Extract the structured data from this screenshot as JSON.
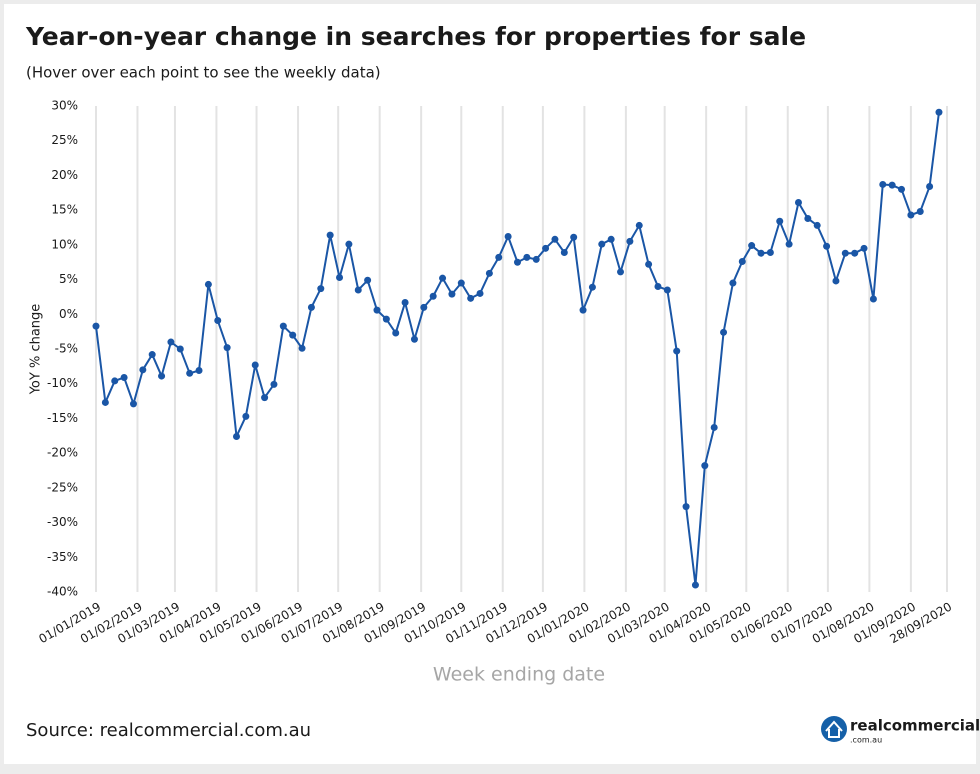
{
  "chart_data": {
    "type": "line",
    "title": "Year-on-year change in searches for properties for sale",
    "subtitle": "(Hover over each point to see the weekly data)",
    "y_label": "YoY % change",
    "x_label": "Week ending date",
    "x": [
      "2019-01-01",
      "2019-01-08",
      "2019-01-15",
      "2019-01-22",
      "2019-01-29",
      "2019-02-05",
      "2019-02-12",
      "2019-02-19",
      "2019-02-26",
      "2019-03-05",
      "2019-03-12",
      "2019-03-19",
      "2019-03-26",
      "2019-04-02",
      "2019-04-09",
      "2019-04-16",
      "2019-04-23",
      "2019-04-30",
      "2019-05-07",
      "2019-05-14",
      "2019-05-21",
      "2019-05-28",
      "2019-06-04",
      "2019-06-11",
      "2019-06-18",
      "2019-06-25",
      "2019-07-02",
      "2019-07-09",
      "2019-07-16",
      "2019-07-23",
      "2019-07-30",
      "2019-08-06",
      "2019-08-13",
      "2019-08-20",
      "2019-08-27",
      "2019-09-03",
      "2019-09-10",
      "2019-09-17",
      "2019-09-24",
      "2019-10-01",
      "2019-10-08",
      "2019-10-15",
      "2019-10-22",
      "2019-10-29",
      "2019-11-05",
      "2019-11-12",
      "2019-11-19",
      "2019-11-26",
      "2019-12-03",
      "2019-12-10",
      "2019-12-17",
      "2019-12-24",
      "2019-12-31",
      "2020-01-07",
      "2020-01-14",
      "2020-01-21",
      "2020-01-28",
      "2020-02-04",
      "2020-02-11",
      "2020-02-18",
      "2020-02-25",
      "2020-03-03",
      "2020-03-10",
      "2020-03-17",
      "2020-03-24",
      "2020-03-31",
      "2020-04-07",
      "2020-04-14",
      "2020-04-21",
      "2020-04-28",
      "2020-05-05",
      "2020-05-12",
      "2020-05-19",
      "2020-05-26",
      "2020-06-02",
      "2020-06-09",
      "2020-06-16",
      "2020-06-23",
      "2020-06-30",
      "2020-07-07",
      "2020-07-14",
      "2020-07-21",
      "2020-07-28",
      "2020-08-04",
      "2020-08-11",
      "2020-08-18",
      "2020-08-25",
      "2020-09-01",
      "2020-09-08",
      "2020-09-15",
      "2020-09-22"
    ],
    "series": [
      {
        "name": "YoY % change",
        "color": "#1a56a6",
        "values": [
          -1.7,
          -12.7,
          -9.6,
          -9.1,
          -12.9,
          -8.0,
          -5.8,
          -8.9,
          -4.0,
          -5.0,
          -8.5,
          -8.1,
          4.3,
          -0.9,
          -4.8,
          -17.6,
          -14.7,
          -7.3,
          -12.0,
          -10.1,
          -1.7,
          -3.0,
          -4.9,
          1.0,
          3.7,
          11.4,
          5.3,
          10.1,
          3.5,
          4.9,
          0.6,
          -0.7,
          -2.7,
          1.7,
          -3.6,
          1.0,
          2.6,
          5.2,
          2.9,
          4.5,
          2.3,
          3.0,
          5.9,
          8.2,
          11.2,
          7.5,
          8.2,
          7.9,
          9.5,
          10.8,
          8.9,
          11.1,
          0.6,
          3.9,
          10.1,
          10.8,
          6.1,
          10.5,
          12.8,
          7.2,
          4.0,
          3.5,
          -5.3,
          -27.7,
          -39.0,
          -21.8,
          -16.3,
          -2.6,
          4.5,
          7.6,
          9.9,
          8.8,
          8.9,
          13.4,
          10.1,
          16.1,
          13.8,
          12.8,
          9.8,
          4.8,
          8.8,
          8.8,
          9.5,
          2.2,
          18.7,
          18.6,
          18.0,
          14.3,
          14.8,
          18.4,
          29.1
        ]
      }
    ],
    "xlim": [
      "2019-01-01",
      "2020-09-28"
    ],
    "xticks": [
      {
        "value": "2019-01-01",
        "label": "01/01/2019"
      },
      {
        "value": "2019-02-01",
        "label": "01/02/2019"
      },
      {
        "value": "2019-03-01",
        "label": "01/03/2019"
      },
      {
        "value": "2019-04-01",
        "label": "01/04/2019"
      },
      {
        "value": "2019-05-01",
        "label": "01/05/2019"
      },
      {
        "value": "2019-06-01",
        "label": "01/06/2019"
      },
      {
        "value": "2019-07-01",
        "label": "01/07/2019"
      },
      {
        "value": "2019-08-01",
        "label": "01/08/2019"
      },
      {
        "value": "2019-09-01",
        "label": "01/09/2019"
      },
      {
        "value": "2019-10-01",
        "label": "01/10/2019"
      },
      {
        "value": "2019-11-01",
        "label": "01/11/2019"
      },
      {
        "value": "2019-12-01",
        "label": "01/12/2019"
      },
      {
        "value": "2020-01-01",
        "label": "01/01/2020"
      },
      {
        "value": "2020-02-01",
        "label": "01/02/2020"
      },
      {
        "value": "2020-03-01",
        "label": "01/03/2020"
      },
      {
        "value": "2020-04-01",
        "label": "01/04/2020"
      },
      {
        "value": "2020-05-01",
        "label": "01/05/2020"
      },
      {
        "value": "2020-06-01",
        "label": "01/06/2020"
      },
      {
        "value": "2020-07-01",
        "label": "01/07/2020"
      },
      {
        "value": "2020-08-01",
        "label": "01/08/2020"
      },
      {
        "value": "2020-09-01",
        "label": "01/09/2020"
      },
      {
        "value": "2020-09-28",
        "label": "28/09/2020"
      }
    ],
    "ylim": [
      -40,
      30
    ],
    "yticks": [
      {
        "value": 30,
        "label": "30%"
      },
      {
        "value": 25,
        "label": "25%"
      },
      {
        "value": 20,
        "label": "20%"
      },
      {
        "value": 15,
        "label": "15%"
      },
      {
        "value": 10,
        "label": "10%"
      },
      {
        "value": 5,
        "label": "5%"
      },
      {
        "value": 0,
        "label": "0%"
      },
      {
        "value": -5,
        "label": "-5%"
      },
      {
        "value": -10,
        "label": "-10%"
      },
      {
        "value": -15,
        "label": "-15%"
      },
      {
        "value": -20,
        "label": "-20%"
      },
      {
        "value": -25,
        "label": "-25%"
      },
      {
        "value": -30,
        "label": "-30%"
      },
      {
        "value": -35,
        "label": "-35%"
      },
      {
        "value": -40,
        "label": "-40%"
      }
    ],
    "grid": "x"
  },
  "source": "Source: realcommercial.com.au",
  "logo": {
    "name": "realcommercial",
    "domain": ".com.au"
  }
}
